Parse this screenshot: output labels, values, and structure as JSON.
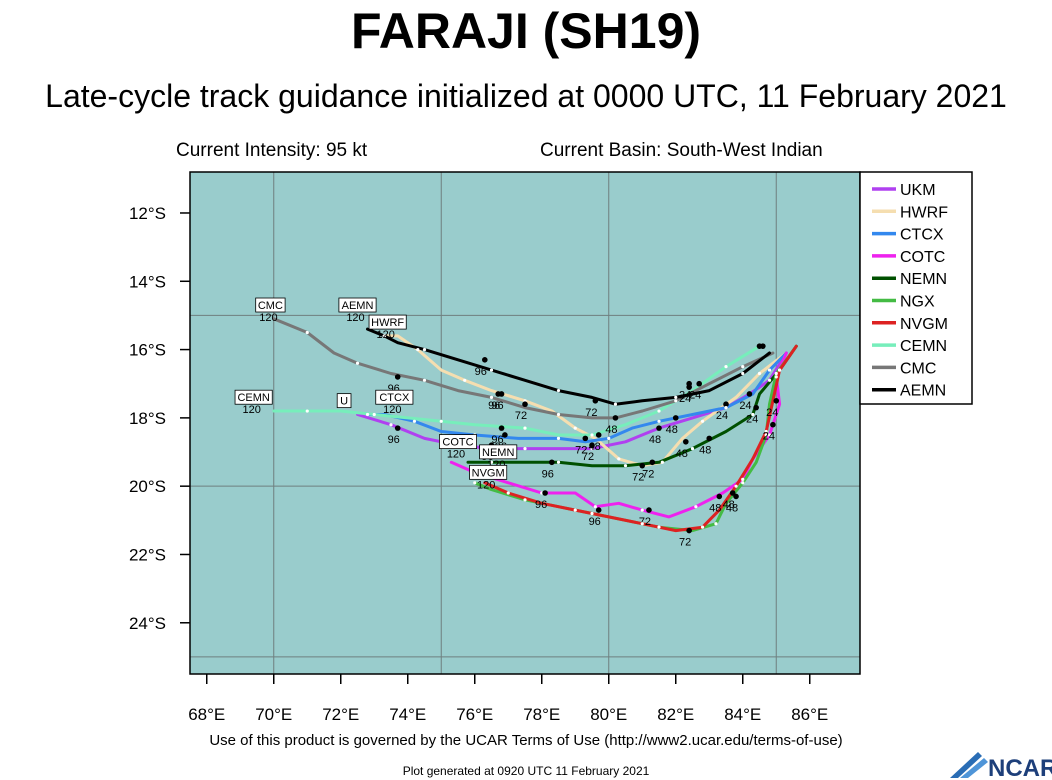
{
  "title": "FARAJI (SH19)",
  "subtitle": "Late-cycle track guidance initialized at 0000 UTC, 11 February 2021",
  "current_intensity": "Current Intensity: 95 kt",
  "current_basin": "Current Basin: South-West Indian",
  "terms": "Use of this product is governed by the UCAR Terms of Use (http://www2.ucar.edu/terms-of-use)",
  "generated": "Plot generated at 0920 UTC   11 February 2021",
  "logo_text": "NCAR",
  "colors": {
    "ocean": "#99cccc",
    "grid": "#6f7f7f"
  },
  "map": {
    "lon_range": [
      67.5,
      87.5
    ],
    "lat_range": [
      -25.5,
      -10.8
    ],
    "lon_ticks": [
      {
        "v": 68,
        "label": "68°E"
      },
      {
        "v": 70,
        "label": "70°E"
      },
      {
        "v": 72,
        "label": "72°E"
      },
      {
        "v": 74,
        "label": "74°E"
      },
      {
        "v": 76,
        "label": "76°E"
      },
      {
        "v": 78,
        "label": "78°E"
      },
      {
        "v": 80,
        "label": "80°E"
      },
      {
        "v": 82,
        "label": "82°E"
      },
      {
        "v": 84,
        "label": "84°E"
      },
      {
        "v": 86,
        "label": "86°E"
      }
    ],
    "lat_ticks": [
      {
        "v": -12,
        "label": "12°S"
      },
      {
        "v": -14,
        "label": "14°S"
      },
      {
        "v": -16,
        "label": "16°S"
      },
      {
        "v": -18,
        "label": "18°S"
      },
      {
        "v": -20,
        "label": "20°S"
      },
      {
        "v": -22,
        "label": "22°S"
      },
      {
        "v": -24,
        "label": "24°S"
      }
    ],
    "grid_lons": [
      70,
      75,
      80,
      85
    ],
    "grid_lats": [
      -15,
      -20,
      -25
    ]
  },
  "chart_data": {
    "type": "track-map",
    "legend_position": "right",
    "tracks": [
      {
        "name": "UKM",
        "color": "#b040f0",
        "label_pos": [
          72.8,
          -17.7
        ],
        "points": [
          [
            85.3,
            -16.1
          ],
          [
            84.8,
            -16.9
          ],
          [
            84.2,
            -17.3
          ],
          [
            83.5,
            -17.7
          ],
          [
            82.5,
            -18.0
          ],
          [
            81.5,
            -18.3
          ],
          [
            80.5,
            -18.7
          ],
          [
            79.5,
            -18.9
          ],
          [
            78.5,
            -18.9
          ],
          [
            77.5,
            -18.9
          ],
          [
            76.5,
            -18.9
          ],
          [
            75.5,
            -18.8
          ],
          [
            74.5,
            -18.6
          ],
          [
            73.5,
            -18.2
          ],
          [
            72.5,
            -17.9
          ]
        ],
        "markers": [
          {
            "lon": 83.5,
            "lat": -17.6,
            "label": "24"
          },
          {
            "lon": 81.5,
            "lat": -18.3,
            "label": "48"
          },
          {
            "lon": 79.5,
            "lat": -18.8,
            "label": "72"
          },
          {
            "lon": 76.5,
            "lat": -18.8,
            "label": "96"
          },
          {
            "lon": 73.7,
            "lat": -18.3,
            "label": "96"
          }
        ]
      },
      {
        "name": "HWRF",
        "color": "#f5deb0",
        "label_pos": [
          73.5,
          -15.5
        ],
        "points": [
          [
            85.3,
            -16.1
          ],
          [
            84.5,
            -16.7
          ],
          [
            83.8,
            -17.4
          ],
          [
            82.8,
            -18.1
          ],
          [
            82.2,
            -18.6
          ],
          [
            81.6,
            -19.3
          ],
          [
            81.0,
            -19.4
          ],
          [
            80.3,
            -19.2
          ],
          [
            79.6,
            -18.6
          ],
          [
            79.0,
            -18.3
          ],
          [
            78.3,
            -17.8
          ],
          [
            77.5,
            -17.5
          ],
          [
            76.5,
            -17.2
          ],
          [
            75.7,
            -16.9
          ],
          [
            75.0,
            -16.6
          ],
          [
            74.3,
            -16.0
          ],
          [
            73.7,
            -15.6
          ],
          [
            73.3,
            -15.6
          ]
        ],
        "markers": [
          {
            "lon": 82.3,
            "lat": -18.7,
            "label": "48"
          },
          {
            "lon": 81.0,
            "lat": -19.4,
            "label": "72"
          },
          {
            "lon": 77.5,
            "lat": -17.6,
            "label": "72"
          },
          {
            "lon": 76.7,
            "lat": -17.3,
            "label": "96"
          }
        ]
      },
      {
        "name": "CTCX",
        "color": "#3388ee",
        "label_pos": [
          73.6,
          -17.6
        ],
        "points": [
          [
            85.3,
            -16.1
          ],
          [
            84.8,
            -16.6
          ],
          [
            84.3,
            -17.3
          ],
          [
            83.5,
            -17.7
          ],
          [
            82.5,
            -17.9
          ],
          [
            81.5,
            -18.1
          ],
          [
            80.7,
            -18.3
          ],
          [
            80.0,
            -18.6
          ],
          [
            79.3,
            -18.7
          ],
          [
            78.5,
            -18.6
          ],
          [
            77.3,
            -18.6
          ],
          [
            76.0,
            -18.5
          ],
          [
            75.0,
            -18.4
          ],
          [
            74.2,
            -18.1
          ],
          [
            73.3,
            -17.9
          ],
          [
            72.8,
            -17.9
          ]
        ],
        "markers": [
          {
            "lon": 84.2,
            "lat": -17.3,
            "label": "24"
          },
          {
            "lon": 82.0,
            "lat": -18.0,
            "label": "48"
          },
          {
            "lon": 79.3,
            "lat": -18.6,
            "label": "72"
          },
          {
            "lon": 76.9,
            "lat": -18.5,
            "label": "96"
          }
        ]
      },
      {
        "name": "COTC",
        "color": "#ee22ee",
        "label_pos": [
          75.5,
          -18.9
        ],
        "points": [
          [
            85.3,
            -16.1
          ],
          [
            85.0,
            -16.8
          ],
          [
            85.1,
            -17.6
          ],
          [
            84.8,
            -18.5
          ],
          [
            84.3,
            -19.2
          ],
          [
            84.0,
            -19.8
          ],
          [
            83.4,
            -20.2
          ],
          [
            82.6,
            -20.6
          ],
          [
            81.8,
            -20.9
          ],
          [
            81.0,
            -20.7
          ],
          [
            80.3,
            -20.5
          ],
          [
            79.6,
            -20.6
          ],
          [
            79.0,
            -20.2
          ],
          [
            78.0,
            -20.2
          ],
          [
            77.0,
            -19.9
          ],
          [
            76.0,
            -19.6
          ],
          [
            75.3,
            -19.3
          ]
        ],
        "markers": [
          {
            "lon": 83.3,
            "lat": -20.3,
            "label": "48"
          },
          {
            "lon": 81.2,
            "lat": -20.7,
            "label": "72"
          },
          {
            "lon": 78.1,
            "lat": -20.2,
            "label": "96"
          }
        ]
      },
      {
        "name": "NEMN",
        "color": "#005000",
        "label_pos": [
          76.7,
          -19.2
        ],
        "points": [
          [
            85.6,
            -15.9
          ],
          [
            85.1,
            -16.6
          ],
          [
            84.5,
            -17.3
          ],
          [
            84.3,
            -17.9
          ],
          [
            83.5,
            -18.4
          ],
          [
            82.5,
            -18.9
          ],
          [
            81.5,
            -19.3
          ],
          [
            80.5,
            -19.4
          ],
          [
            79.5,
            -19.4
          ],
          [
            78.5,
            -19.3
          ],
          [
            77.5,
            -19.3
          ],
          [
            76.5,
            -19.3
          ],
          [
            75.8,
            -19.3
          ]
        ],
        "markers": [
          {
            "lon": 84.4,
            "lat": -17.7,
            "label": "24"
          },
          {
            "lon": 83.0,
            "lat": -18.6,
            "label": "48"
          },
          {
            "lon": 81.3,
            "lat": -19.3,
            "label": "72"
          },
          {
            "lon": 78.3,
            "lat": -19.3,
            "label": "96"
          }
        ]
      },
      {
        "name": "NGX",
        "color": "#44bb44",
        "label_pos": [
          76.0,
          -19.8
        ],
        "points": [
          [
            85.6,
            -15.9
          ],
          [
            85.0,
            -16.7
          ],
          [
            84.8,
            -17.6
          ],
          [
            84.7,
            -18.5
          ],
          [
            84.4,
            -19.3
          ],
          [
            84.0,
            -19.9
          ],
          [
            83.5,
            -20.5
          ],
          [
            83.2,
            -21.1
          ],
          [
            82.5,
            -21.3
          ],
          [
            81.5,
            -21.2
          ],
          [
            80.5,
            -21.0
          ],
          [
            79.5,
            -20.8
          ],
          [
            78.5,
            -20.6
          ],
          [
            77.5,
            -20.4
          ],
          [
            76.5,
            -20.1
          ],
          [
            76.0,
            -19.9
          ]
        ],
        "markers": [
          {
            "lon": 85.0,
            "lat": -17.5,
            "label": "24"
          },
          {
            "lon": 83.8,
            "lat": -20.3,
            "label": "48"
          },
          {
            "lon": 82.4,
            "lat": -21.3,
            "label": "72"
          },
          {
            "lon": 79.7,
            "lat": -20.7,
            "label": "96"
          }
        ]
      },
      {
        "name": "NVGM",
        "color": "#dd2222",
        "label_pos": [
          76.3,
          -20.1
        ],
        "points": [
          [
            85.6,
            -15.9
          ],
          [
            85.1,
            -16.6
          ],
          [
            84.9,
            -17.5
          ],
          [
            84.7,
            -18.4
          ],
          [
            84.3,
            -19.2
          ],
          [
            83.8,
            -20.0
          ],
          [
            83.3,
            -20.7
          ],
          [
            82.8,
            -21.2
          ],
          [
            82.0,
            -21.3
          ],
          [
            81.0,
            -21.1
          ],
          [
            80.0,
            -20.9
          ],
          [
            79.0,
            -20.7
          ],
          [
            78.0,
            -20.5
          ],
          [
            77.0,
            -20.2
          ],
          [
            76.3,
            -19.9
          ]
        ],
        "markers": [
          {
            "lon": 84.9,
            "lat": -18.2,
            "label": "24"
          },
          {
            "lon": 83.7,
            "lat": -20.2,
            "label": "48"
          }
        ]
      },
      {
        "name": "CEMN",
        "color": "#77eebb",
        "label_pos": [
          69.8,
          -17.6
        ],
        "points": [
          [
            84.5,
            -15.9
          ],
          [
            83.5,
            -16.5
          ],
          [
            82.5,
            -17.2
          ],
          [
            81.5,
            -17.8
          ],
          [
            80.5,
            -18.2
          ],
          [
            79.5,
            -18.5
          ],
          [
            78.5,
            -18.5
          ],
          [
            77.5,
            -18.3
          ],
          [
            76.0,
            -18.2
          ],
          [
            75.0,
            -18.1
          ],
          [
            74.0,
            -18.0
          ],
          [
            73.0,
            -17.9
          ],
          [
            72.0,
            -17.8
          ],
          [
            71.0,
            -17.8
          ],
          [
            70.0,
            -17.8
          ]
        ],
        "markers": [
          {
            "lon": 84.5,
            "lat": -15.9,
            "label": ""
          },
          {
            "lon": 82.4,
            "lat": -17.1,
            "label": "24"
          },
          {
            "lon": 79.7,
            "lat": -18.5,
            "label": "48"
          },
          {
            "lon": 76.8,
            "lat": -18.3,
            "label": "96"
          }
        ]
      },
      {
        "name": "CMC",
        "color": "#777777",
        "label_pos": [
          69.9,
          -14.9
        ],
        "points": [
          [
            84.9,
            -16.1
          ],
          [
            84.0,
            -16.5
          ],
          [
            83.0,
            -17.0
          ],
          [
            82.0,
            -17.5
          ],
          [
            81.0,
            -17.8
          ],
          [
            80.2,
            -18.0
          ],
          [
            79.5,
            -18.0
          ],
          [
            78.5,
            -17.9
          ],
          [
            77.5,
            -17.7
          ],
          [
            76.5,
            -17.4
          ],
          [
            75.5,
            -17.2
          ],
          [
            74.5,
            -16.9
          ],
          [
            73.5,
            -16.7
          ],
          [
            72.5,
            -16.4
          ],
          [
            71.8,
            -16.1
          ],
          [
            71.0,
            -15.5
          ],
          [
            70.0,
            -15.1
          ]
        ],
        "markers": [
          {
            "lon": 82.7,
            "lat": -17.0,
            "label": "24"
          },
          {
            "lon": 80.2,
            "lat": -18.0,
            "label": "48"
          },
          {
            "lon": 76.8,
            "lat": -17.3,
            "label": "96"
          },
          {
            "lon": 73.7,
            "lat": -16.8,
            "label": "96"
          }
        ]
      },
      {
        "name": "AEMN",
        "color": "#000000",
        "label_pos": [
          72.5,
          -14.9
        ],
        "points": [
          [
            84.8,
            -16.1
          ],
          [
            84.0,
            -16.7
          ],
          [
            83.0,
            -17.2
          ],
          [
            82.0,
            -17.4
          ],
          [
            81.0,
            -17.5
          ],
          [
            80.2,
            -17.6
          ],
          [
            79.5,
            -17.4
          ],
          [
            78.5,
            -17.2
          ],
          [
            77.5,
            -16.9
          ],
          [
            76.5,
            -16.6
          ],
          [
            75.5,
            -16.3
          ],
          [
            74.5,
            -16.0
          ],
          [
            73.7,
            -15.8
          ],
          [
            73.3,
            -15.6
          ],
          [
            72.8,
            -15.4
          ]
        ],
        "markers": [
          {
            "lon": 84.6,
            "lat": -15.9,
            "label": ""
          },
          {
            "lon": 82.4,
            "lat": -17.0,
            "label": "24"
          },
          {
            "lon": 79.6,
            "lat": -17.5,
            "label": "72"
          },
          {
            "lon": 76.3,
            "lat": -16.3,
            "label": "96"
          }
        ]
      }
    ],
    "end_labels": [
      {
        "name": "CMC",
        "lon": 69.9,
        "lat": -14.9,
        "hour": "120"
      },
      {
        "name": "AEMN",
        "lon": 72.5,
        "lat": -14.9,
        "hour": "120"
      },
      {
        "name": "HWRF",
        "lon": 73.4,
        "lat": -15.4,
        "hour": "120"
      },
      {
        "name": "CEMN",
        "lon": 69.4,
        "lat": -17.6,
        "hour": "120"
      },
      {
        "name": "U",
        "lon": 72.1,
        "lat": -17.7,
        "hour": ""
      },
      {
        "name": "CTCX",
        "lon": 73.6,
        "lat": -17.6,
        "hour": "120"
      },
      {
        "name": "COTC",
        "lon": 75.5,
        "lat": -18.9,
        "hour": "120"
      },
      {
        "name": "NEMN",
        "lon": 76.7,
        "lat": -19.2,
        "hour": "120"
      },
      {
        "name": "NVGM",
        "lon": 76.4,
        "lat": -19.8,
        "hour": "120"
      }
    ]
  }
}
